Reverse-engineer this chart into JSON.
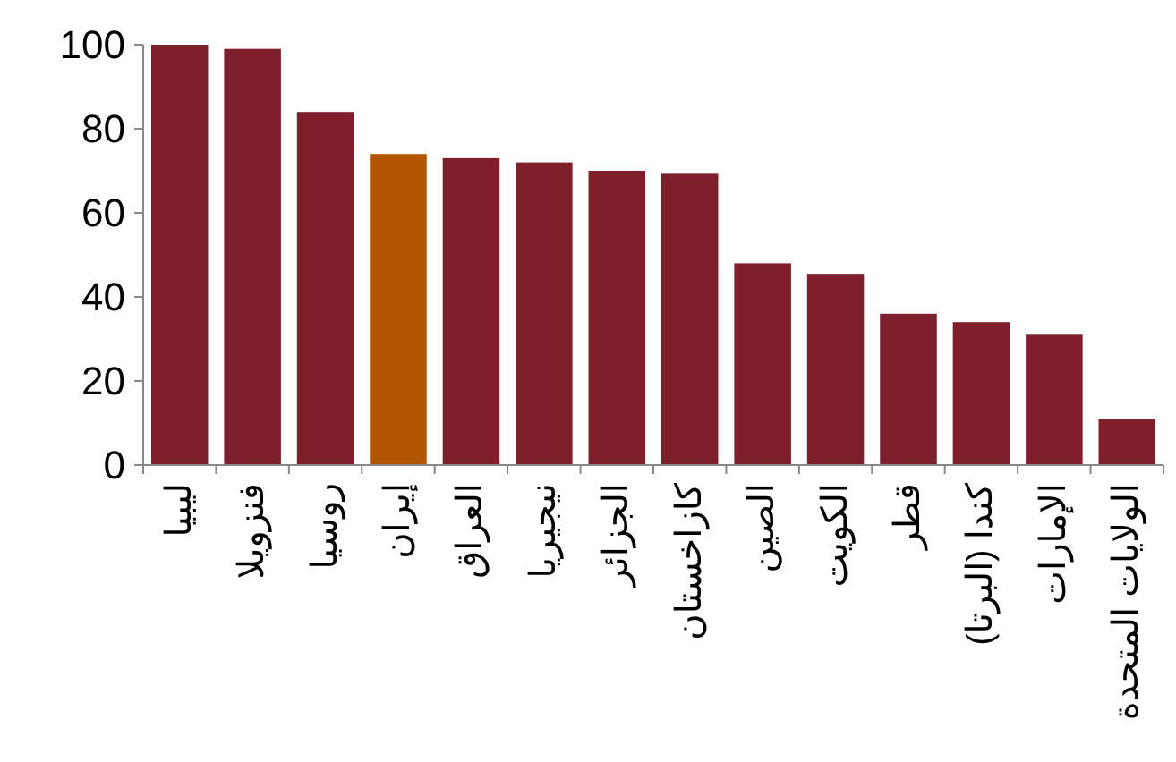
{
  "chart_data": {
    "type": "bar",
    "categories": [
      "ليبيا",
      "فنزويلا",
      "روسيا",
      "إيران",
      "العراق",
      "نيجيريا",
      "الجزائر",
      "كازاخستان",
      "الصين",
      "الكويت",
      "قطر",
      "كندا (البرتا)",
      "الإمارات",
      "الولايات المتحدة"
    ],
    "values": [
      100,
      99,
      84,
      74,
      73,
      72,
      70,
      69.5,
      48,
      45.5,
      36,
      34,
      31,
      11
    ],
    "colors": [
      "#7f1f2b",
      "#7f1f2b",
      "#7f1f2b",
      "#b35400",
      "#7f1f2b",
      "#7f1f2b",
      "#7f1f2b",
      "#7f1f2b",
      "#7f1f2b",
      "#7f1f2b",
      "#7f1f2b",
      "#7f1f2b",
      "#7f1f2b",
      "#7f1f2b"
    ],
    "ylim": [
      0,
      100
    ],
    "yticks": [
      0,
      20,
      40,
      60,
      80,
      100
    ],
    "grid": false
  }
}
